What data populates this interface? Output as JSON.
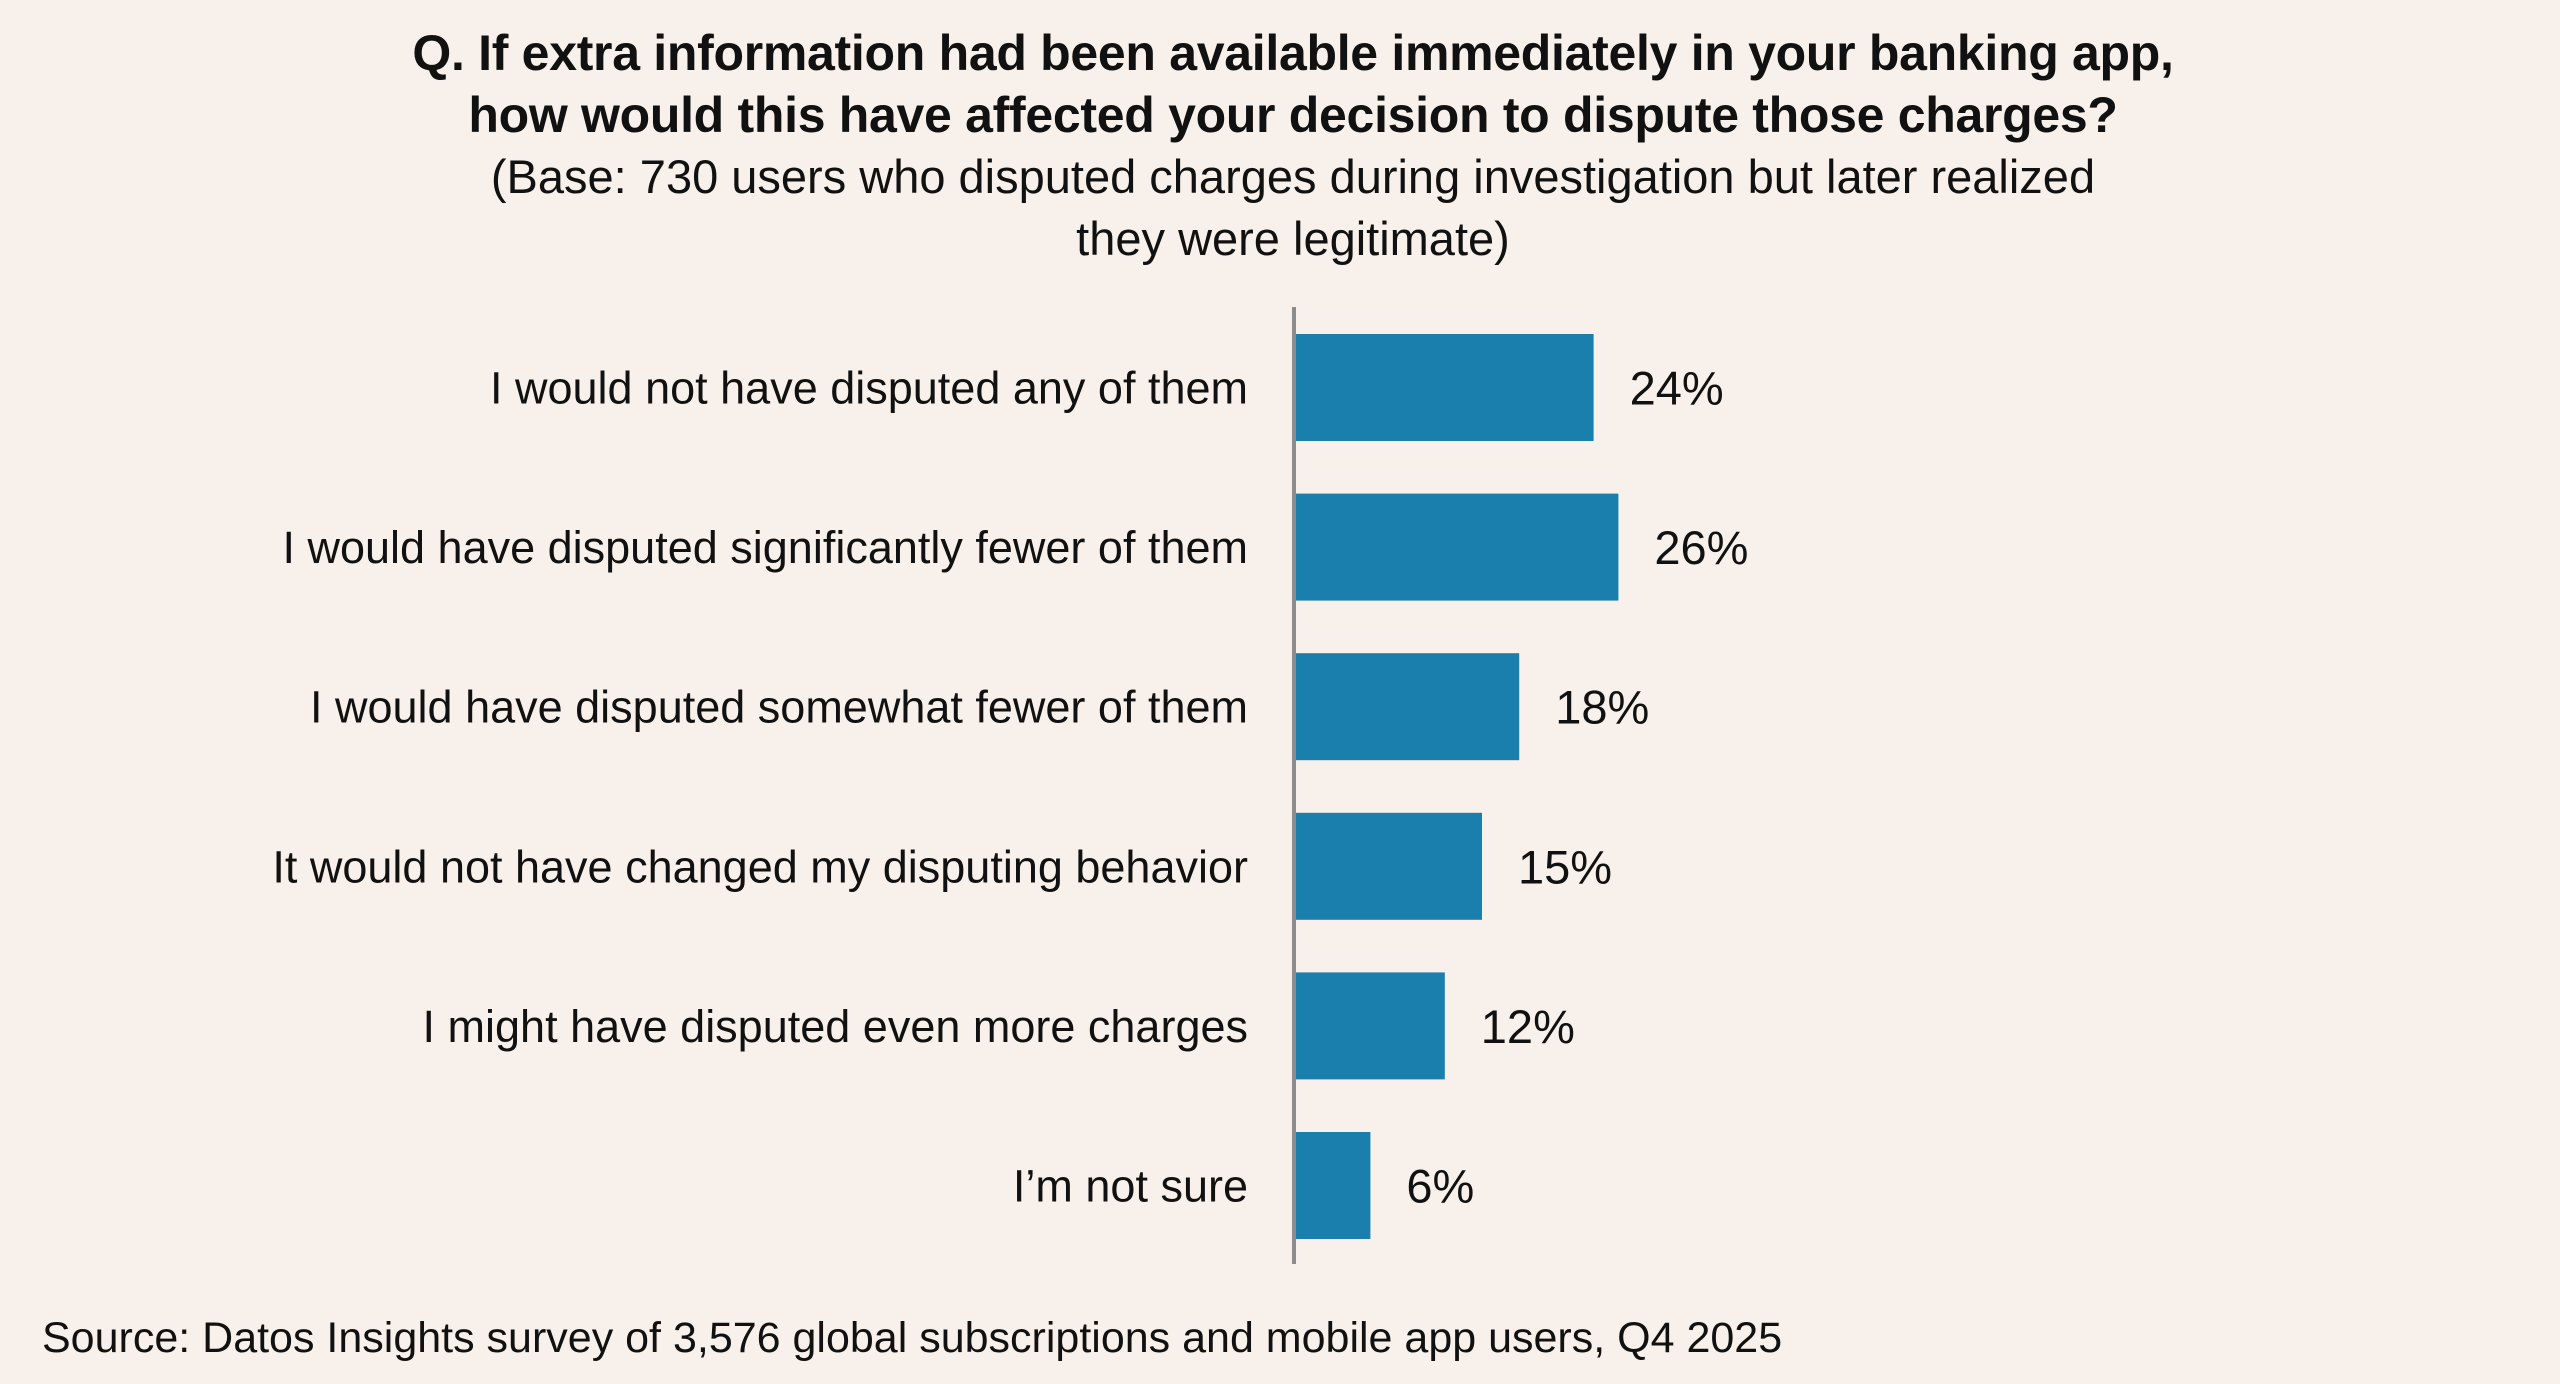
{
  "title": {
    "line1": "Q. If extra information had been available immediately in your banking app,",
    "line2": "how would this have affected your decision to dispute those charges?",
    "subtitle_line1": "(Base: 730 users who disputed charges during investigation but later realized",
    "subtitle_line2": "they were legitimate)"
  },
  "source": "Source: Datos Insights survey of 3,576 global subscriptions and mobile app users, Q4 2025",
  "colors": {
    "background": "#F8F1EB",
    "bar": "#1B7FAD",
    "axis": "#8C8C8C",
    "text": "#111111"
  },
  "chart_data": {
    "type": "bar",
    "orientation": "horizontal",
    "title": "Q. If extra information had been available immediately in your banking app, how would this have affected your decision to dispute those charges?",
    "subtitle": "(Base: 730 users who disputed charges during investigation but later realized they were legitimate)",
    "xlabel": "",
    "ylabel": "",
    "unit": "%",
    "grid": false,
    "legend": "none",
    "categories": [
      "I would not have disputed any of them",
      "I would have disputed significantly fewer of them",
      "I would have disputed somewhat fewer of them",
      "It would not have changed my disputing behavior",
      "I might have disputed even more charges",
      "I’m not sure"
    ],
    "values": [
      24,
      26,
      18,
      15,
      12,
      6
    ],
    "labels": [
      "24%",
      "26%",
      "18%",
      "15%",
      "12%",
      "6%"
    ],
    "xlim": [
      0,
      100
    ]
  }
}
